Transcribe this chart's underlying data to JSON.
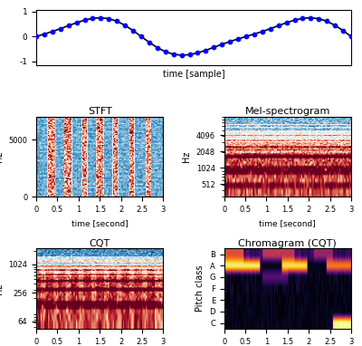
{
  "xlabel_waveform": "time [sample]",
  "waveform_color": "blue",
  "waveform_line_color": "black",
  "stft_title": "STFT",
  "stft_xlabel": "time [second]",
  "stft_ylabel": "Hz",
  "mel_title": "Mel-spectrogram",
  "mel_xlabel": "time [second]",
  "mel_ylabel": "Hz",
  "mel_yticks": [
    512,
    1024,
    2048,
    4096
  ],
  "cqt_title": "CQT",
  "cqt_xlabel": "time [second]",
  "cqt_ylabel": "Hz",
  "cqt_yticks": [
    64,
    256,
    1024
  ],
  "chroma_title": "Chromagram (CQT)",
  "chroma_xlabel": "time [second]",
  "chroma_ylabel": "Pitch class",
  "chroma_yticks": [
    "C",
    "D",
    "E",
    "F",
    "G",
    "A",
    "B"
  ],
  "xticks_spec": [
    0,
    0.5,
    1,
    1.5,
    2,
    2.5,
    3
  ],
  "time_max": 3.0,
  "background": "#ffffff",
  "spec_cmap": "RdBu_r",
  "chroma_cmap": "inferno"
}
